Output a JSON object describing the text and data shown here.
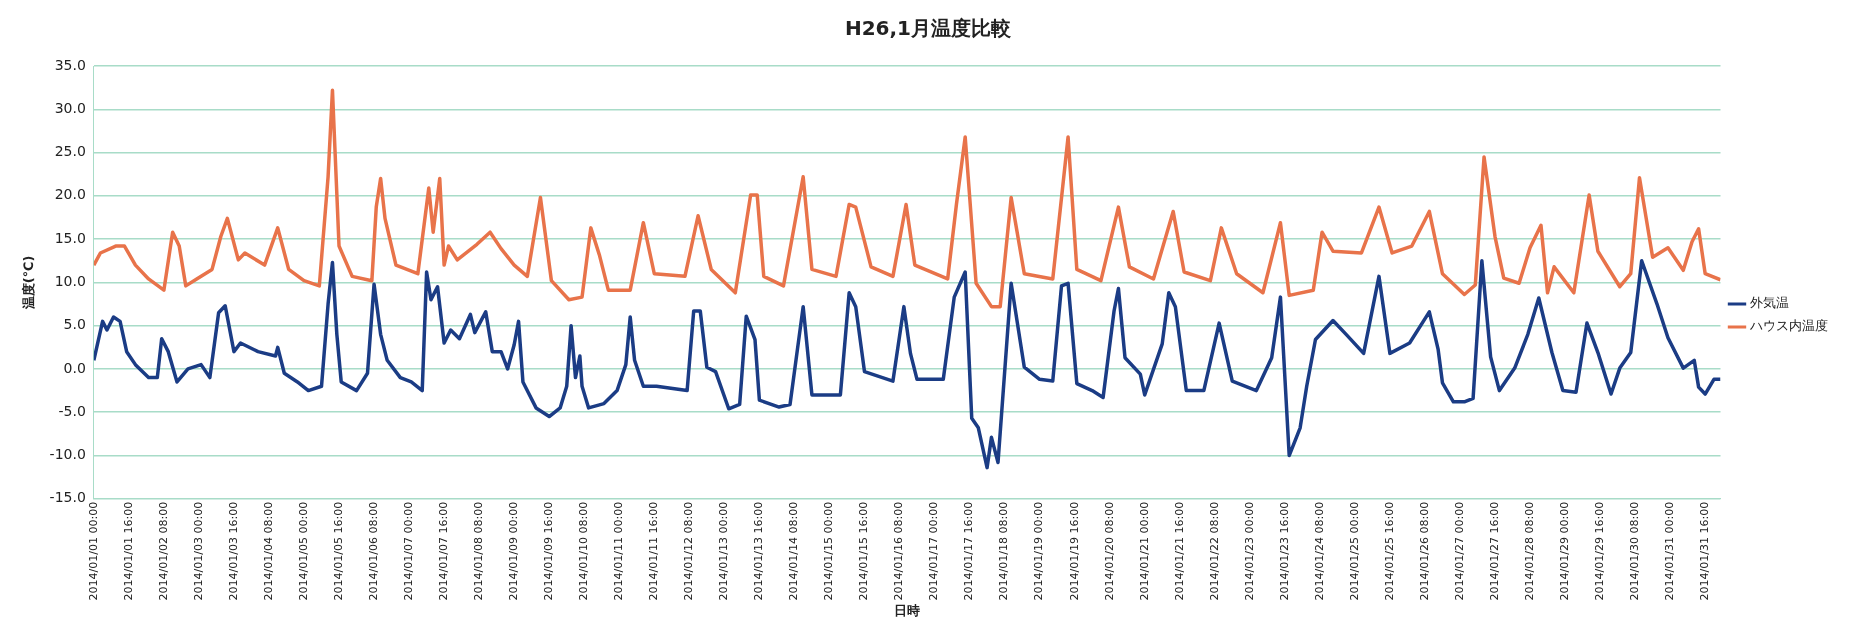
{
  "chart_data": {
    "type": "line",
    "title": "H26,1月温度比較",
    "xlabel": "日時",
    "ylabel": "温度(℃)",
    "xlim": [
      "2014-01-01T00:00",
      "2014-01-31T23:00"
    ],
    "xticks": [
      {
        "value": "2014-01-01T00:00",
        "label": "2014/01/01 00:00"
      },
      {
        "value": "2014-01-01T16:00",
        "label": "2014/01/01 16:00"
      },
      {
        "value": "2014-01-02T08:00",
        "label": "2014/01/02 08:00"
      },
      {
        "value": "2014-01-03T00:00",
        "label": "2014/01/03 00:00"
      },
      {
        "value": "2014-01-03T16:00",
        "label": "2014/01/03 16:00"
      },
      {
        "value": "2014-01-04T08:00",
        "label": "2014/01/04 08:00"
      },
      {
        "value": "2014-01-05T00:00",
        "label": "2014/01/05 00:00"
      },
      {
        "value": "2014-01-05T16:00",
        "label": "2014/01/05 16:00"
      },
      {
        "value": "2014-01-06T08:00",
        "label": "2014/01/06 08:00"
      },
      {
        "value": "2014-01-07T00:00",
        "label": "2014/01/07 00:00"
      },
      {
        "value": "2014-01-07T16:00",
        "label": "2014/01/07 16:00"
      },
      {
        "value": "2014-01-08T08:00",
        "label": "2014/01/08 08:00"
      },
      {
        "value": "2014-01-09T00:00",
        "label": "2014/01/09 00:00"
      },
      {
        "value": "2014-01-09T16:00",
        "label": "2014/01/09 16:00"
      },
      {
        "value": "2014-01-10T08:00",
        "label": "2014/01/10 08:00"
      },
      {
        "value": "2014-01-11T00:00",
        "label": "2014/01/11 00:00"
      },
      {
        "value": "2014-01-11T16:00",
        "label": "2014/01/11 16:00"
      },
      {
        "value": "2014-01-12T08:00",
        "label": "2014/01/12 08:00"
      },
      {
        "value": "2014-01-13T00:00",
        "label": "2014/01/13 00:00"
      },
      {
        "value": "2014-01-13T16:00",
        "label": "2014/01/13 16:00"
      },
      {
        "value": "2014-01-14T08:00",
        "label": "2014/01/14 08:00"
      },
      {
        "value": "2014-01-15T00:00",
        "label": "2014/01/15 00:00"
      },
      {
        "value": "2014-01-15T16:00",
        "label": "2014/01/15 16:00"
      },
      {
        "value": "2014-01-16T08:00",
        "label": "2014/01/16 08:00"
      },
      {
        "value": "2014-01-17T00:00",
        "label": "2014/01/17 00:00"
      },
      {
        "value": "2014-01-17T16:00",
        "label": "2014/01/17 16:00"
      },
      {
        "value": "2014-01-18T08:00",
        "label": "2014/01/18 08:00"
      },
      {
        "value": "2014-01-19T00:00",
        "label": "2014/01/19 00:00"
      },
      {
        "value": "2014-01-19T16:00",
        "label": "2014/01/19 16:00"
      },
      {
        "value": "2014-01-20T08:00",
        "label": "2014/01/20 08:00"
      },
      {
        "value": "2014-01-21T00:00",
        "label": "2014/01/21 00:00"
      },
      {
        "value": "2014-01-21T16:00",
        "label": "2014/01/21 16:00"
      },
      {
        "value": "2014-01-22T08:00",
        "label": "2014/01/22 08:00"
      },
      {
        "value": "2014-01-23T00:00",
        "label": "2014/01/23 00:00"
      },
      {
        "value": "2014-01-23T16:00",
        "label": "2014/01/23 16:00"
      },
      {
        "value": "2014-01-24T08:00",
        "label": "2014/01/24 08:00"
      },
      {
        "value": "2014-01-25T00:00",
        "label": "2014/01/25 00:00"
      },
      {
        "value": "2014-01-25T16:00",
        "label": "2014/01/25 16:00"
      },
      {
        "value": "2014-01-26T08:00",
        "label": "2014/01/26 08:00"
      },
      {
        "value": "2014-01-27T00:00",
        "label": "2014/01/27 00:00"
      },
      {
        "value": "2014-01-27T16:00",
        "label": "2014/01/27 16:00"
      },
      {
        "value": "2014-01-28T08:00",
        "label": "2014/01/28 08:00"
      },
      {
        "value": "2014-01-29T00:00",
        "label": "2014/01/29 00:00"
      },
      {
        "value": "2014-01-29T16:00",
        "label": "2014/01/29 16:00"
      },
      {
        "value": "2014-01-30T08:00",
        "label": "2014/01/30 08:00"
      },
      {
        "value": "2014-01-31T00:00",
        "label": "2014/01/31 00:00"
      },
      {
        "value": "2014-01-31T16:00",
        "label": "2014/01/31 16:00"
      }
    ],
    "ylim": [
      -15,
      35
    ],
    "yticks": [
      {
        "value": -15,
        "label": "-15.0"
      },
      {
        "value": -10,
        "label": "-10.0"
      },
      {
        "value": -5,
        "label": "-5.0"
      },
      {
        "value": 0,
        "label": "0.0"
      },
      {
        "value": 5,
        "label": "5.0"
      },
      {
        "value": 10,
        "label": "10.0"
      },
      {
        "value": 15,
        "label": "15.0"
      },
      {
        "value": 20,
        "label": "20.0"
      },
      {
        "value": 25,
        "label": "25.0"
      },
      {
        "value": 30,
        "label": "30.0"
      },
      {
        "value": 35,
        "label": "35.0"
      }
    ],
    "grid": "y",
    "legend": "right",
    "series": [
      {
        "name": "外気温",
        "color": "#1b3c85",
        "x": [
          "2014-01-01T00:00",
          "2014-01-01T04:00",
          "2014-01-01T06:00",
          "2014-01-01T09:00",
          "2014-01-01T12:00",
          "2014-01-01T15:00",
          "2014-01-01T19:00",
          "2014-01-02T01:00",
          "2014-01-02T05:00",
          "2014-01-02T07:00",
          "2014-01-02T10:00",
          "2014-01-02T14:00",
          "2014-01-02T19:00",
          "2014-01-03T01:00",
          "2014-01-03T05:00",
          "2014-01-03T09:00",
          "2014-01-03T12:00",
          "2014-01-03T16:00",
          "2014-01-03T19:00",
          "2014-01-04T03:00",
          "2014-01-04T11:00",
          "2014-01-04T12:00",
          "2014-01-04T15:00",
          "2014-01-04T21:00",
          "2014-01-05T02:00",
          "2014-01-05T08:00",
          "2014-01-05T11:00",
          "2014-01-05T13:00",
          "2014-01-05T15:00",
          "2014-01-05T17:00",
          "2014-01-06T00:00",
          "2014-01-06T05:00",
          "2014-01-06T08:00",
          "2014-01-06T11:00",
          "2014-01-06T14:00",
          "2014-01-06T20:00",
          "2014-01-07T01:00",
          "2014-01-07T06:00",
          "2014-01-07T08:00",
          "2014-01-07T10:00",
          "2014-01-07T13:00",
          "2014-01-07T16:00",
          "2014-01-07T19:00",
          "2014-01-07T23:00",
          "2014-01-08T04:00",
          "2014-01-08T06:00",
          "2014-01-08T11:00",
          "2014-01-08T14:00",
          "2014-01-08T18:00",
          "2014-01-08T21:00",
          "2014-01-09T00:00",
          "2014-01-09T02:00",
          "2014-01-09T04:00",
          "2014-01-09T10:00",
          "2014-01-09T16:00",
          "2014-01-09T21:00",
          "2014-01-10T00:00",
          "2014-01-10T02:00",
          "2014-01-10T04:00",
          "2014-01-10T06:00",
          "2014-01-10T07:00",
          "2014-01-10T10:00",
          "2014-01-10T17:00",
          "2014-01-10T23:00",
          "2014-01-11T03:00",
          "2014-01-11T05:00",
          "2014-01-11T07:00",
          "2014-01-11T11:00",
          "2014-01-11T17:00",
          "2014-01-12T07:00",
          "2014-01-12T10:00",
          "2014-01-12T13:00",
          "2014-01-12T16:00",
          "2014-01-12T20:00",
          "2014-01-13T02:00",
          "2014-01-13T07:00",
          "2014-01-13T10:00",
          "2014-01-13T14:00",
          "2014-01-13T16:00",
          "2014-01-14T01:00",
          "2014-01-14T06:00",
          "2014-01-14T12:00",
          "2014-01-14T16:00",
          "2014-01-15T05:00",
          "2014-01-15T09:00",
          "2014-01-15T12:00",
          "2014-01-15T16:00",
          "2014-01-16T05:00",
          "2014-01-16T10:00",
          "2014-01-16T13:00",
          "2014-01-16T16:00",
          "2014-01-17T04:00",
          "2014-01-17T09:00",
          "2014-01-17T14:00",
          "2014-01-17T17:00",
          "2014-01-17T20:00",
          "2014-01-18T00:00",
          "2014-01-18T02:00",
          "2014-01-18T05:00",
          "2014-01-18T11:00",
          "2014-01-18T17:00",
          "2014-01-19T00:00",
          "2014-01-19T06:00",
          "2014-01-19T10:00",
          "2014-01-19T13:00",
          "2014-01-19T17:00",
          "2014-01-20T00:00",
          "2014-01-20T05:00",
          "2014-01-20T10:00",
          "2014-01-20T12:00",
          "2014-01-20T15:00",
          "2014-01-20T22:00",
          "2014-01-21T00:00",
          "2014-01-21T08:00",
          "2014-01-21T11:00",
          "2014-01-21T14:00",
          "2014-01-21T19:00",
          "2014-01-22T03:00",
          "2014-01-22T10:00",
          "2014-01-22T16:00",
          "2014-01-23T03:00",
          "2014-01-23T10:00",
          "2014-01-23T14:00",
          "2014-01-23T18:00",
          "2014-01-23T23:00",
          "2014-01-24T02:00",
          "2014-01-24T06:00",
          "2014-01-24T14:00",
          "2014-01-24T20:00",
          "2014-01-25T04:00",
          "2014-01-25T11:00",
          "2014-01-25T16:00",
          "2014-01-26T01:00",
          "2014-01-26T10:00",
          "2014-01-26T14:00",
          "2014-01-26T16:00",
          "2014-01-26T21:00",
          "2014-01-27T02:00",
          "2014-01-27T06:00",
          "2014-01-27T10:00",
          "2014-01-27T14:00",
          "2014-01-27T18:00",
          "2014-01-28T01:00",
          "2014-01-28T07:00",
          "2014-01-28T12:00",
          "2014-01-28T18:00",
          "2014-01-28T23:00",
          "2014-01-29T05:00",
          "2014-01-29T10:00",
          "2014-01-29T15:00",
          "2014-01-29T21:00",
          "2014-01-30T01:00",
          "2014-01-30T06:00",
          "2014-01-30T11:00",
          "2014-01-30T18:00",
          "2014-01-30T23:00",
          "2014-01-31T06:00",
          "2014-01-31T11:00",
          "2014-01-31T13:00",
          "2014-01-31T16:00",
          "2014-01-31T20:00",
          "2014-01-31T23:00"
        ],
        "values": [
          1.0,
          5.5,
          4.5,
          6.0,
          5.5,
          2.0,
          0.5,
          -1.0,
          -1.0,
          3.5,
          2.0,
          -1.5,
          0.0,
          0.5,
          -1.0,
          6.5,
          7.3,
          2.0,
          3.0,
          2.0,
          1.5,
          2.5,
          -0.5,
          -1.5,
          -2.5,
          -2.0,
          7.5,
          12.3,
          4.0,
          -1.5,
          -2.5,
          -0.5,
          9.8,
          4.0,
          1.0,
          -1.0,
          -1.5,
          -2.5,
          11.2,
          8.0,
          9.5,
          3.0,
          4.5,
          3.5,
          6.3,
          4.2,
          6.6,
          2.0,
          2.0,
          0.0,
          2.8,
          5.5,
          -1.5,
          -4.5,
          -5.5,
          -4.5,
          -2.0,
          5.0,
          -1.0,
          1.5,
          -2.0,
          -4.5,
          -4.0,
          -2.5,
          0.5,
          6.0,
          1.0,
          -2.0,
          -2.0,
          -2.5,
          6.7,
          6.7,
          0.2,
          -0.3,
          -4.6,
          -4.1,
          6.1,
          3.4,
          -3.6,
          -4.4,
          -4.1,
          7.2,
          -3.0,
          -3.0,
          8.8,
          7.2,
          -0.3,
          -1.4,
          7.2,
          1.8,
          -1.2,
          -1.2,
          8.3,
          11.2,
          -5.7,
          -6.8,
          -11.4,
          -7.9,
          -10.8,
          9.9,
          0.2,
          -1.2,
          -1.4,
          9.6,
          9.9,
          -1.7,
          -2.5,
          -3.3,
          6.7,
          9.3,
          1.3,
          -0.6,
          -3.0,
          2.9,
          8.8,
          7.2,
          -2.5,
          -2.5,
          5.3,
          -1.4,
          -2.5,
          1.3,
          8.3,
          -10.0,
          -6.8,
          -2.0,
          3.4,
          5.6,
          4.0,
          1.8,
          10.7,
          1.8,
          3.0,
          6.6,
          2.3,
          -1.6,
          -3.8,
          -3.8,
          -3.4,
          12.5,
          1.4,
          -2.5,
          0.1,
          4.0,
          8.2,
          1.9,
          -2.5,
          -2.7,
          5.3,
          1.9,
          -2.9,
          0.1,
          1.9,
          12.5,
          7.5,
          3.6,
          0.1,
          1.0,
          -2.1,
          -2.9,
          -1.2,
          -1.2
        ]
      },
      {
        "name": "ハウス内温度",
        "color": "#e8734a",
        "x": [
          "2014-01-01T00:00",
          "2014-01-01T03:00",
          "2014-01-01T10:00",
          "2014-01-01T14:00",
          "2014-01-01T19:00",
          "2014-01-02T01:00",
          "2014-01-02T08:00",
          "2014-01-02T12:00",
          "2014-01-02T15:00",
          "2014-01-02T18:00",
          "2014-01-02T23:00",
          "2014-01-03T06:00",
          "2014-01-03T10:00",
          "2014-01-03T13:00",
          "2014-01-03T18:00",
          "2014-01-03T21:00",
          "2014-01-04T06:00",
          "2014-01-04T12:00",
          "2014-01-04T17:00",
          "2014-01-05T00:00",
          "2014-01-05T07:00",
          "2014-01-05T11:00",
          "2014-01-05T13:00",
          "2014-01-05T16:00",
          "2014-01-05T22:00",
          "2014-01-06T07:00",
          "2014-01-06T09:00",
          "2014-01-06T11:00",
          "2014-01-06T13:00",
          "2014-01-06T18:00",
          "2014-01-07T04:00",
          "2014-01-07T09:00",
          "2014-01-07T11:00",
          "2014-01-07T14:00",
          "2014-01-07T16:00",
          "2014-01-07T18:00",
          "2014-01-07T22:00",
          "2014-01-08T07:00",
          "2014-01-08T13:00",
          "2014-01-08T18:00",
          "2014-01-09T00:00",
          "2014-01-09T06:00",
          "2014-01-09T12:00",
          "2014-01-09T17:00",
          "2014-01-10T01:00",
          "2014-01-10T07:00",
          "2014-01-10T11:00",
          "2014-01-10T15:00",
          "2014-01-10T19:00",
          "2014-01-11T05:00",
          "2014-01-11T11:00",
          "2014-01-11T16:00",
          "2014-01-12T06:00",
          "2014-01-12T12:00",
          "2014-01-12T18:00",
          "2014-01-13T05:00",
          "2014-01-13T12:00",
          "2014-01-13T15:00",
          "2014-01-13T18:00",
          "2014-01-14T03:00",
          "2014-01-14T12:00",
          "2014-01-14T16:00",
          "2014-01-15T03:00",
          "2014-01-15T09:00",
          "2014-01-15T12:00",
          "2014-01-15T19:00",
          "2014-01-16T05:00",
          "2014-01-16T11:00",
          "2014-01-16T15:00",
          "2014-01-17T06:00",
          "2014-01-17T10:00",
          "2014-01-17T14:00",
          "2014-01-17T19:00",
          "2014-01-18T02:00",
          "2014-01-18T06:00",
          "2014-01-18T11:00",
          "2014-01-18T17:00",
          "2014-01-19T06:00",
          "2014-01-19T13:00",
          "2014-01-19T17:00",
          "2014-01-20T04:00",
          "2014-01-20T12:00",
          "2014-01-20T17:00",
          "2014-01-21T04:00",
          "2014-01-21T13:00",
          "2014-01-21T18:00",
          "2014-01-22T06:00",
          "2014-01-22T11:00",
          "2014-01-22T18:00",
          "2014-01-23T06:00",
          "2014-01-23T14:00",
          "2014-01-23T18:00",
          "2014-01-24T05:00",
          "2014-01-24T09:00",
          "2014-01-24T14:00",
          "2014-01-25T03:00",
          "2014-01-25T11:00",
          "2014-01-25T17:00",
          "2014-01-26T02:00",
          "2014-01-26T10:00",
          "2014-01-26T16:00",
          "2014-01-27T02:00",
          "2014-01-27T07:00",
          "2014-01-27T11:00",
          "2014-01-27T16:00",
          "2014-01-27T20:00",
          "2014-01-28T03:00",
          "2014-01-28T08:00",
          "2014-01-28T13:00",
          "2014-01-28T16:00",
          "2014-01-28T19:00",
          "2014-01-29T04:00",
          "2014-01-29T11:00",
          "2014-01-29T15:00",
          "2014-01-30T01:00",
          "2014-01-30T06:00",
          "2014-01-30T10:00",
          "2014-01-30T16:00",
          "2014-01-30T23:00",
          "2014-01-31T06:00",
          "2014-01-31T10:00",
          "2014-01-31T13:00",
          "2014-01-31T16:00",
          "2014-01-31T23:00"
        ],
        "values": [
          12.0,
          13.4,
          14.2,
          14.2,
          12.0,
          10.4,
          9.1,
          15.8,
          14.2,
          9.6,
          10.4,
          11.5,
          15.3,
          17.4,
          12.6,
          13.4,
          12.0,
          16.3,
          11.5,
          10.2,
          9.6,
          22.2,
          32.2,
          14.2,
          10.7,
          10.2,
          18.7,
          22.0,
          17.4,
          12.0,
          11.0,
          20.9,
          15.8,
          22.0,
          12.0,
          14.2,
          12.6,
          14.4,
          15.8,
          13.9,
          12.0,
          10.7,
          19.8,
          10.2,
          8.0,
          8.3,
          16.3,
          13.1,
          9.1,
          9.1,
          16.9,
          11.0,
          10.7,
          17.7,
          11.5,
          8.8,
          20.1,
          20.1,
          10.7,
          9.6,
          22.2,
          11.5,
          10.7,
          19.0,
          18.7,
          11.8,
          10.7,
          19.0,
          12.0,
          10.4,
          19.0,
          26.8,
          9.9,
          7.2,
          7.2,
          19.8,
          11.0,
          10.4,
          26.8,
          11.5,
          10.2,
          18.7,
          11.8,
          10.4,
          18.2,
          11.2,
          10.2,
          16.3,
          11.0,
          8.8,
          16.9,
          8.5,
          9.1,
          15.8,
          13.6,
          13.4,
          18.7,
          13.4,
          14.2,
          18.2,
          11.0,
          8.6,
          9.7,
          24.5,
          15.3,
          10.5,
          9.9,
          14.0,
          16.6,
          8.8,
          11.8,
          8.8,
          20.1,
          13.6,
          9.5,
          11.0,
          22.1,
          12.9,
          14.0,
          11.4,
          14.7,
          16.2,
          11.0,
          10.3
        ]
      }
    ]
  }
}
